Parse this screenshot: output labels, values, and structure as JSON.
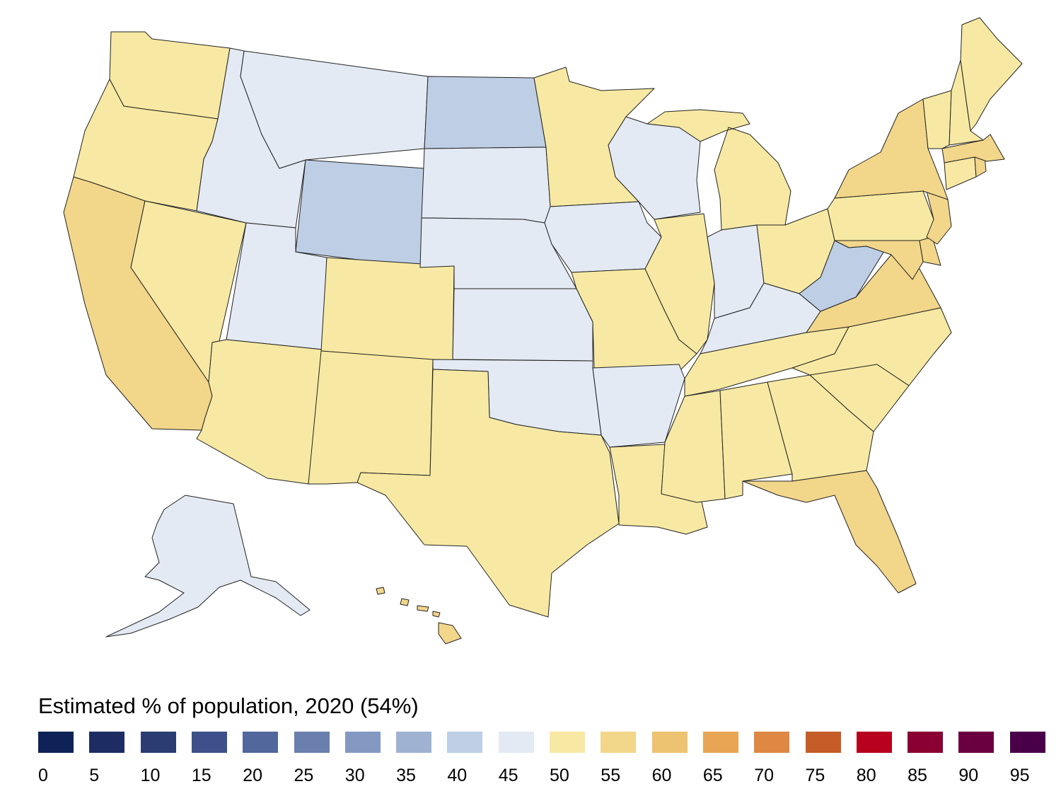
{
  "legend": {
    "title": "Estimated % of population, 2020 (54%)",
    "bins": [
      {
        "label": "0",
        "color": "#0f2257"
      },
      {
        "label": "5",
        "color": "#1d2d63"
      },
      {
        "label": "10",
        "color": "#2b3c73"
      },
      {
        "label": "15",
        "color": "#3d5089"
      },
      {
        "label": "20",
        "color": "#52679c"
      },
      {
        "label": "25",
        "color": "#6a7fae"
      },
      {
        "label": "30",
        "color": "#8399c2"
      },
      {
        "label": "35",
        "color": "#a0b2d2"
      },
      {
        "label": "40",
        "color": "#becee5"
      },
      {
        "label": "45",
        "color": "#e3eaf4"
      },
      {
        "label": "50",
        "color": "#f7e9a3"
      },
      {
        "label": "55",
        "color": "#f2d68a"
      },
      {
        "label": "60",
        "color": "#edc270"
      },
      {
        "label": "65",
        "color": "#e8a554"
      },
      {
        "label": "70",
        "color": "#df8843"
      },
      {
        "label": "75",
        "color": "#c65d29"
      },
      {
        "label": "80",
        "color": "#b8001f"
      },
      {
        "label": "85",
        "color": "#8a0033"
      },
      {
        "label": "90",
        "color": "#6a0040"
      },
      {
        "label": "95",
        "color": "#4a0048"
      }
    ]
  },
  "map": {
    "states": [
      {
        "id": "WA",
        "bin": 10
      },
      {
        "id": "OR",
        "bin": 10
      },
      {
        "id": "CA",
        "bin": 11
      },
      {
        "id": "NV",
        "bin": 10
      },
      {
        "id": "ID",
        "bin": 9
      },
      {
        "id": "MT",
        "bin": 9
      },
      {
        "id": "WY",
        "bin": 8
      },
      {
        "id": "UT",
        "bin": 9
      },
      {
        "id": "AZ",
        "bin": 10
      },
      {
        "id": "CO",
        "bin": 10
      },
      {
        "id": "NM",
        "bin": 10
      },
      {
        "id": "ND",
        "bin": 8
      },
      {
        "id": "SD",
        "bin": 9
      },
      {
        "id": "NE",
        "bin": 9
      },
      {
        "id": "KS",
        "bin": 9
      },
      {
        "id": "OK",
        "bin": 9
      },
      {
        "id": "TX",
        "bin": 10
      },
      {
        "id": "MN",
        "bin": 10
      },
      {
        "id": "IA",
        "bin": 9
      },
      {
        "id": "MO",
        "bin": 10
      },
      {
        "id": "AR",
        "bin": 9
      },
      {
        "id": "LA",
        "bin": 10
      },
      {
        "id": "WI",
        "bin": 9
      },
      {
        "id": "IL",
        "bin": 10
      },
      {
        "id": "MI",
        "bin": 10
      },
      {
        "id": "IN",
        "bin": 9
      },
      {
        "id": "OH",
        "bin": 10
      },
      {
        "id": "KY",
        "bin": 9
      },
      {
        "id": "TN",
        "bin": 10
      },
      {
        "id": "MS",
        "bin": 10
      },
      {
        "id": "AL",
        "bin": 10
      },
      {
        "id": "GA",
        "bin": 10
      },
      {
        "id": "FL",
        "bin": 11
      },
      {
        "id": "SC",
        "bin": 10
      },
      {
        "id": "NC",
        "bin": 10
      },
      {
        "id": "VA",
        "bin": 11
      },
      {
        "id": "WV",
        "bin": 8
      },
      {
        "id": "MD",
        "bin": 11
      },
      {
        "id": "DE",
        "bin": 11
      },
      {
        "id": "PA",
        "bin": 10
      },
      {
        "id": "NJ",
        "bin": 11
      },
      {
        "id": "NY",
        "bin": 11
      },
      {
        "id": "CT",
        "bin": 10
      },
      {
        "id": "RI",
        "bin": 11
      },
      {
        "id": "MA",
        "bin": 11
      },
      {
        "id": "VT",
        "bin": 10
      },
      {
        "id": "NH",
        "bin": 10
      },
      {
        "id": "ME",
        "bin": 10
      },
      {
        "id": "AK",
        "bin": 9
      },
      {
        "id": "HI",
        "bin": 11
      }
    ]
  }
}
